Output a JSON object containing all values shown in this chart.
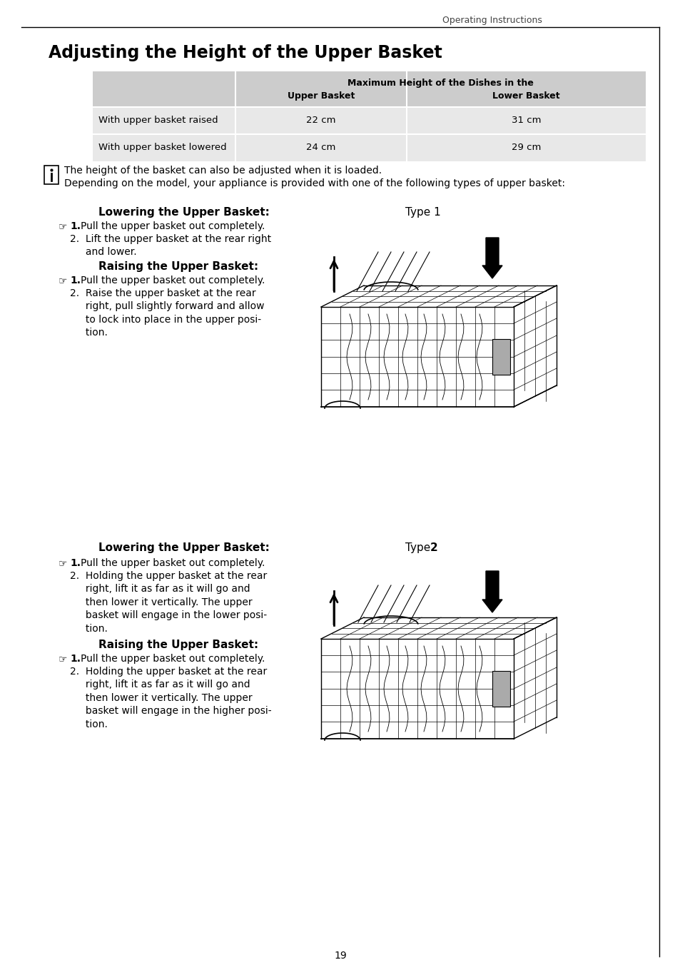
{
  "page_header": "Operating Instructions",
  "title": "Adjusting the Height of the Upper Basket",
  "table_header_main": "Maximum Height of the Dishes in the",
  "table_col1": "Upper Basket",
  "table_col2": "Lower Basket",
  "table_row1_label": "With upper basket raised",
  "table_row1_val1": "22 cm",
  "table_row1_val2": "31 cm",
  "table_row2_label": "With upper basket lowered",
  "table_row2_val1": "24 cm",
  "table_row2_val2": "29 cm",
  "info_text1": "The height of the basket can also be adjusted when it is loaded.",
  "info_text2": "Depending on the model, your appliance is provided with one of the following types of upper basket:",
  "type1_lower_heading": "Lowering the Upper Basket:",
  "type1_label": "Type 1",
  "type1_lower_step1a": "1.",
  "type1_lower_step1b": "Pull the upper basket out completely.",
  "type1_lower_step2": "2.  Lift the upper basket at the rear right\n     and lower.",
  "type1_raise_heading": "Raising the Upper Basket:",
  "type1_raise_step1a": "1.",
  "type1_raise_step1b": "Pull the upper basket out completely.",
  "type1_raise_step2": "2.  Raise the upper basket at the rear\n     right, pull slightly forward and allow\n     to lock into place in the upper posi-\n     tion.",
  "type2_lower_heading": "Lowering the Upper Basket:",
  "type2_label": "Type 2",
  "type2_lower_step1a": "1.",
  "type2_lower_step1b": "Pull the upper basket out completely.",
  "type2_lower_step2": "2.  Holding the upper basket at the rear\n     right, lift it as far as it will go and\n     then lower it vertically. The upper\n     basket will engage in the lower posi-\n     tion.",
  "type2_raise_heading": "Raising the Upper Basket:",
  "type2_raise_step1a": "1.",
  "type2_raise_step1b": "Pull the upper basket out completely.",
  "type2_raise_step2": "2.  Holding the upper basket at the rear\n     right, lift it as far as it will go and\n     then lower it vertically. The upper\n     basket will engage in the higher posi-\n     tion.",
  "page_number": "19",
  "bg_color": "#ffffff",
  "table_bg_header": "#cccccc",
  "table_bg_row1": "#e8e8e8",
  "table_bg_row2": "#e8e8e8",
  "border_color": "#888888"
}
